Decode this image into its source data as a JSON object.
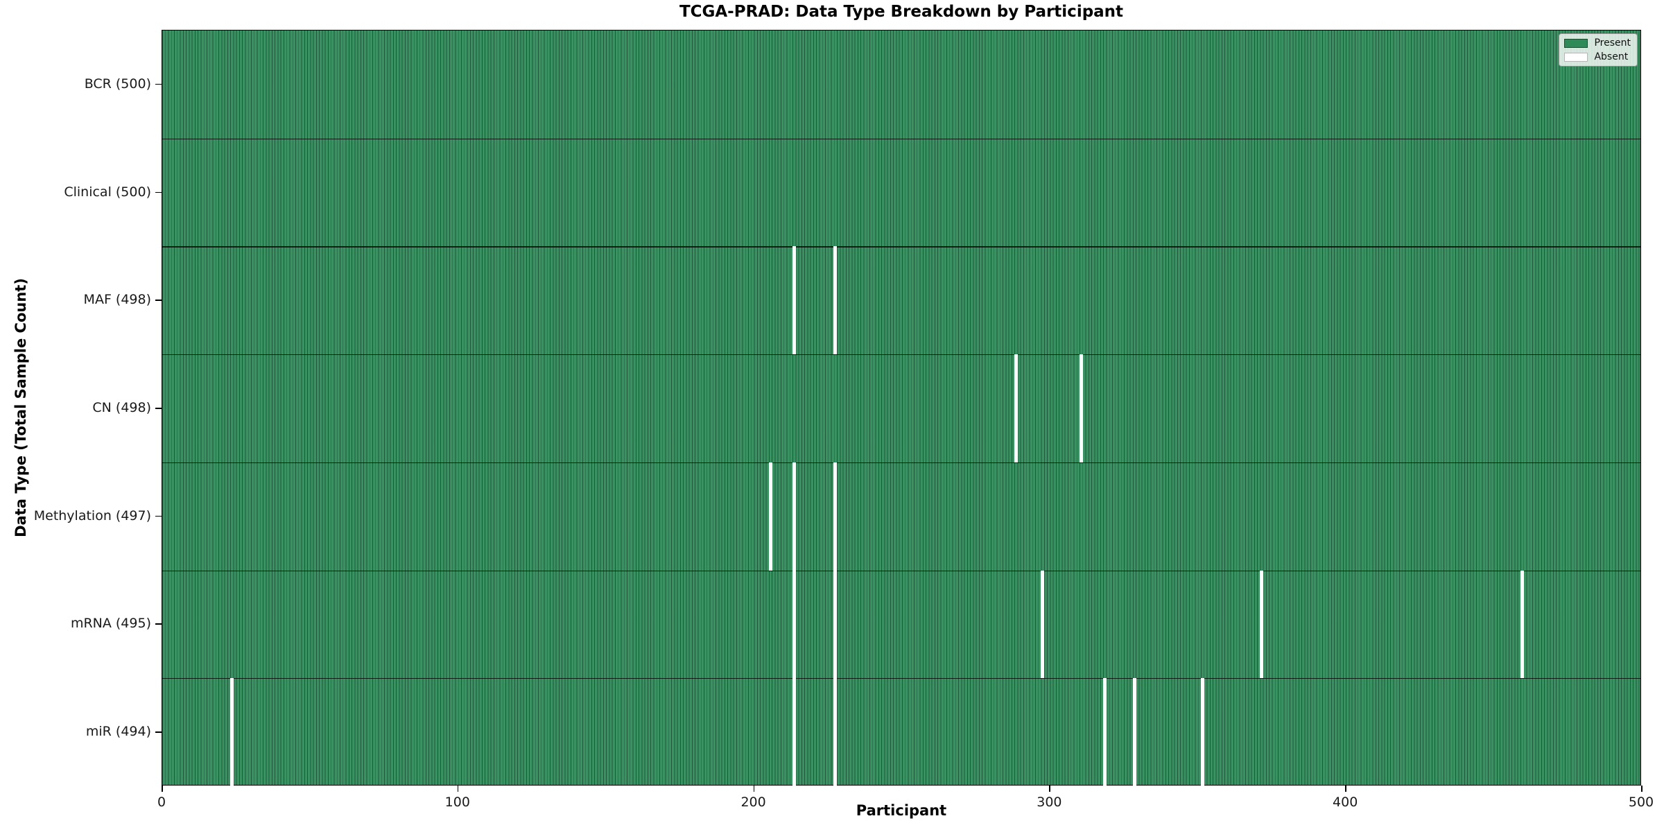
{
  "title": "TCGA-PRAD: Data Type Breakdown by Participant",
  "colors": {
    "present": "#2e8b57",
    "absent": "#ffffff",
    "axis": "#000000"
  },
  "legend": {
    "present_label": "Present",
    "absent_label": "Absent"
  },
  "chart_data": {
    "type": "heatmap",
    "title": "TCGA-PRAD: Data Type Breakdown by Participant",
    "xlabel": "Participant",
    "ylabel": "Data Type (Total Sample Count)",
    "xlim": [
      0,
      500
    ],
    "x_ticks": [
      0,
      100,
      200,
      300,
      400,
      500
    ],
    "n_participants": 500,
    "grid": false,
    "legend_position": "upper right",
    "legend": [
      {
        "label": "Present",
        "color": "#2e8b57"
      },
      {
        "label": "Absent",
        "color": "#ffffff"
      }
    ],
    "rows": [
      {
        "name": "BCR",
        "label": "BCR (500)",
        "total": 500,
        "absent_participants": []
      },
      {
        "name": "Clinical",
        "label": "Clinical (500)",
        "total": 500,
        "absent_participants": []
      },
      {
        "name": "MAF",
        "label": "MAF (498)",
        "total": 498,
        "absent_participants": [
          213,
          227
        ]
      },
      {
        "name": "CN",
        "label": "CN (498)",
        "total": 498,
        "absent_participants": [
          288,
          310
        ]
      },
      {
        "name": "Methylation",
        "label": "Methylation (497)",
        "total": 497,
        "absent_participants": [
          205,
          213,
          227
        ]
      },
      {
        "name": "mRNA",
        "label": "mRNA (495)",
        "total": 495,
        "absent_participants": [
          213,
          227,
          297,
          371,
          459
        ]
      },
      {
        "name": "miR",
        "label": "miR (494)",
        "total": 494,
        "absent_participants": [
          23,
          213,
          227,
          318,
          328,
          351
        ]
      }
    ]
  }
}
